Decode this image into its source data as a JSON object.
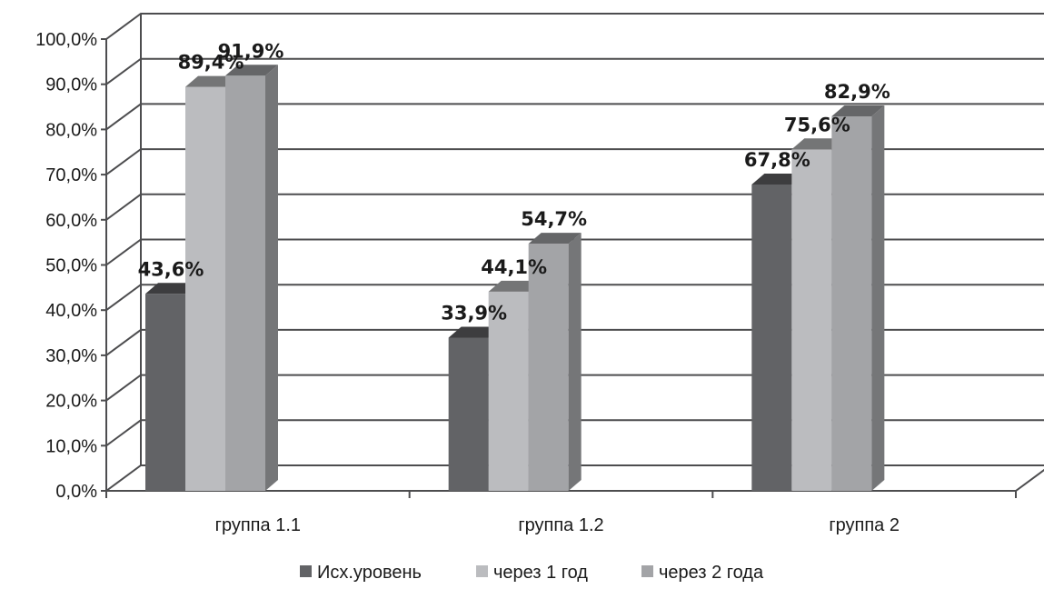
{
  "chart_data": {
    "type": "bar",
    "style": "3d-clustered-column",
    "categories": [
      "группа 1.1",
      "группа 1.2",
      "группа 2"
    ],
    "series": [
      {
        "name": "Исх.уровень",
        "values": [
          43.6,
          33.9,
          67.8
        ],
        "color": "#626366"
      },
      {
        "name": "через 1 год",
        "values": [
          89.4,
          44.1,
          75.6
        ],
        "color": "#bbbcbf"
      },
      {
        "name": "через 2 года",
        "values": [
          91.9,
          54.7,
          82.9
        ],
        "color": "#a3a4a7"
      }
    ],
    "data_labels": [
      [
        "43,6%",
        "33,9%",
        "67,8%"
      ],
      [
        "89,4%",
        "44,1%",
        "75,6%"
      ],
      [
        "91,9%",
        "54,7%",
        "82,9%"
      ]
    ],
    "y_ticks": [
      "0,0%",
      "10,0%",
      "20,0%",
      "30,0%",
      "40,0%",
      "50,0%",
      "60,0%",
      "70,0%",
      "80,0%",
      "90,0%",
      "100,0%"
    ],
    "ylim": [
      0,
      100
    ],
    "title": "",
    "xlabel": "",
    "ylabel": "",
    "grid": true,
    "legend_position": "bottom"
  }
}
